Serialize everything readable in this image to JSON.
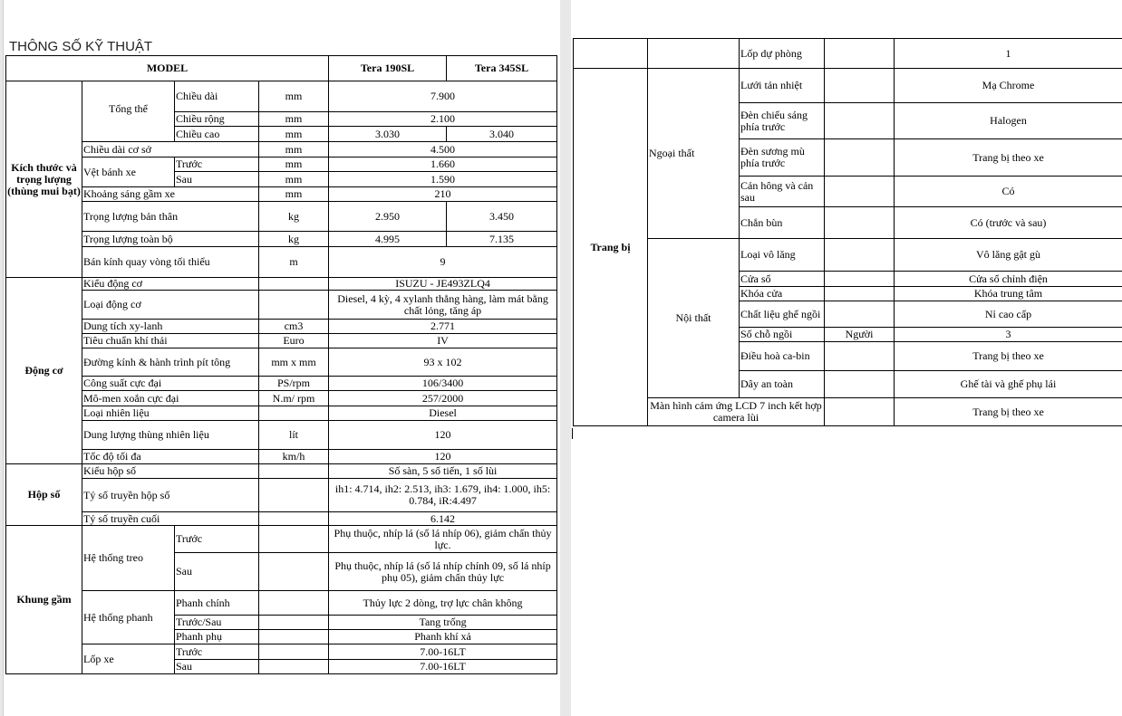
{
  "title": "THÔNG SỐ KỸ THUẬT",
  "header": {
    "model": "MODEL",
    "m1": "Tera 190SL",
    "m2": "Tera 345SL"
  },
  "dims": {
    "section": "Kích thước và trọng lượng (thùng mui bạt)",
    "overall": "Tổng thể",
    "length": {
      "label": "Chiều dài",
      "unit": "mm",
      "value": "7.900"
    },
    "width": {
      "label": "Chiều rộng",
      "unit": "mm",
      "value": "2.100"
    },
    "height": {
      "label": "Chiều cao",
      "unit": "mm",
      "v1": "3.030",
      "v2": "3.040"
    },
    "wheelbase": {
      "label": "Chiều dài cơ sở",
      "unit": "mm",
      "value": "4.500"
    },
    "track": "Vệt bánh xe",
    "track_front": {
      "label": "Trước",
      "unit": "mm",
      "value": "1.660"
    },
    "track_rear": {
      "label": "Sau",
      "unit": "mm",
      "value": "1.590"
    },
    "clearance": {
      "label": "Khoảng sáng gầm xe",
      "unit": "mm",
      "value": "210"
    },
    "curb_weight": {
      "label": "Trọng lượng bản thân",
      "unit": "kg",
      "v1": "2.950",
      "v2": "3.450"
    },
    "gross_weight": {
      "label": "Trọng lượng toàn bộ",
      "unit": "kg",
      "v1": "4.995",
      "v2": "7.135"
    },
    "turning": {
      "label": "Bán kính quay vòng tối thiểu",
      "unit": "m",
      "value": "9"
    }
  },
  "engine": {
    "section": "Động cơ",
    "rows": [
      {
        "label": "Kiểu động cơ",
        "unit": "",
        "value": "ISUZU - JE493ZLQ4"
      },
      {
        "label": "Loại động cơ",
        "unit": "",
        "value": "Diesel, 4 kỳ, 4 xylanh thẳng hàng, làm mát bằng chất lỏng, tăng áp"
      },
      {
        "label": "Dung tích xy-lanh",
        "unit": "cm3",
        "value": "2.771"
      },
      {
        "label": "Tiêu chuẩn khí thải",
        "unit": "Euro",
        "value": "IV"
      },
      {
        "label": "Đường kính & hành trình pít tông",
        "unit": "mm x mm",
        "value": "93 x 102"
      },
      {
        "label": "Công suất cực đại",
        "unit": "PS/rpm",
        "value": "106/3400"
      },
      {
        "label": "Mô-men xoắn cực đại",
        "unit": "N.m/ rpm",
        "value": "257/2000"
      },
      {
        "label": "Loại nhiên liệu",
        "unit": "",
        "value": "Diesel"
      },
      {
        "label": "Dung lượng thùng nhiên liệu",
        "unit": "lít",
        "value": "120"
      },
      {
        "label": "Tốc độ tối đa",
        "unit": "km/h",
        "value": "120"
      }
    ]
  },
  "gearbox": {
    "section": "Hộp số",
    "rows": [
      {
        "label": "Kiểu hộp số",
        "value": "Số sàn, 5 số tiến, 1 số lùi"
      },
      {
        "label": "Tỷ số truyền hộp số",
        "value": "ih1: 4.714, ih2: 2.513, ih3: 1.679, ih4: 1.000, ih5: 0.784, iR:4.497"
      },
      {
        "label": "Tỷ số truyền cuối",
        "value": "6.142"
      }
    ]
  },
  "chassis": {
    "section": "Khung gầm",
    "suspension": "Hệ thống treo",
    "susp_front": {
      "label": "Trước",
      "value": "Phụ thuộc, nhíp lá (số lá nhíp 06), giảm chấn thủy lực."
    },
    "susp_rear": {
      "label": "Sau",
      "value": "Phụ thuộc, nhíp lá (số lá nhíp chính 09, số lá nhíp phụ 05), giảm chấn thủy lực"
    },
    "brakes": "Hệ thống phanh",
    "brake_main": {
      "label": "Phanh chính",
      "value": "Thủy lực 2 dòng, trợ lực chân không"
    },
    "brake_fr": {
      "label": "Trước/Sau",
      "value": "Tang trống"
    },
    "brake_aux": {
      "label": "Phanh phụ",
      "value": "Phanh khí xả"
    },
    "tires": "Lốp xe",
    "tire_front": {
      "label": "Trước",
      "value": "7.00-16LT"
    },
    "tire_rear": {
      "label": "Sau",
      "value": "7.00-16LT"
    }
  },
  "equipment": {
    "spare": {
      "label": "Lốp dự phòng",
      "value": "1"
    },
    "section": "Trang bị",
    "exterior": "Ngoại thất",
    "ext_rows": [
      {
        "label": "Lưới tản nhiệt",
        "value": "Mạ Chrome"
      },
      {
        "label": "Đèn chiếu sáng phía trước",
        "value": "Halogen"
      },
      {
        "label": "Đèn sương mù phía trước",
        "value": "Trang bị theo xe"
      },
      {
        "label": "Cản hông và cản sau",
        "value": "Có"
      },
      {
        "label": "Chắn bùn",
        "value": "Có (trước và sau)"
      }
    ],
    "interior": "Nội thất",
    "int_rows": [
      {
        "label": "Loại vô lăng",
        "unit": "",
        "value": "Vô lăng gật gù"
      },
      {
        "label": "Cửa sổ",
        "unit": "",
        "value": "Cửa sổ chỉnh điện"
      },
      {
        "label": "Khóa cửa",
        "unit": "",
        "value": "Khóa trung tâm"
      },
      {
        "label": "Chất liệu ghế ngồi",
        "unit": "",
        "value": "Nỉ cao cấp"
      },
      {
        "label": "Số chỗ ngồi",
        "unit": "Người",
        "value": "3"
      },
      {
        "label": "Điều hoà ca-bin",
        "unit": "",
        "value": "Trang bị theo xe"
      },
      {
        "label": "Dây an toàn",
        "unit": "",
        "value": "Ghế tài và ghế phụ lái"
      }
    ],
    "screen": {
      "label": "Màn hình cảm ứng LCD 7 inch kết hợp camera lùi",
      "value": "Trang bị theo xe"
    }
  }
}
